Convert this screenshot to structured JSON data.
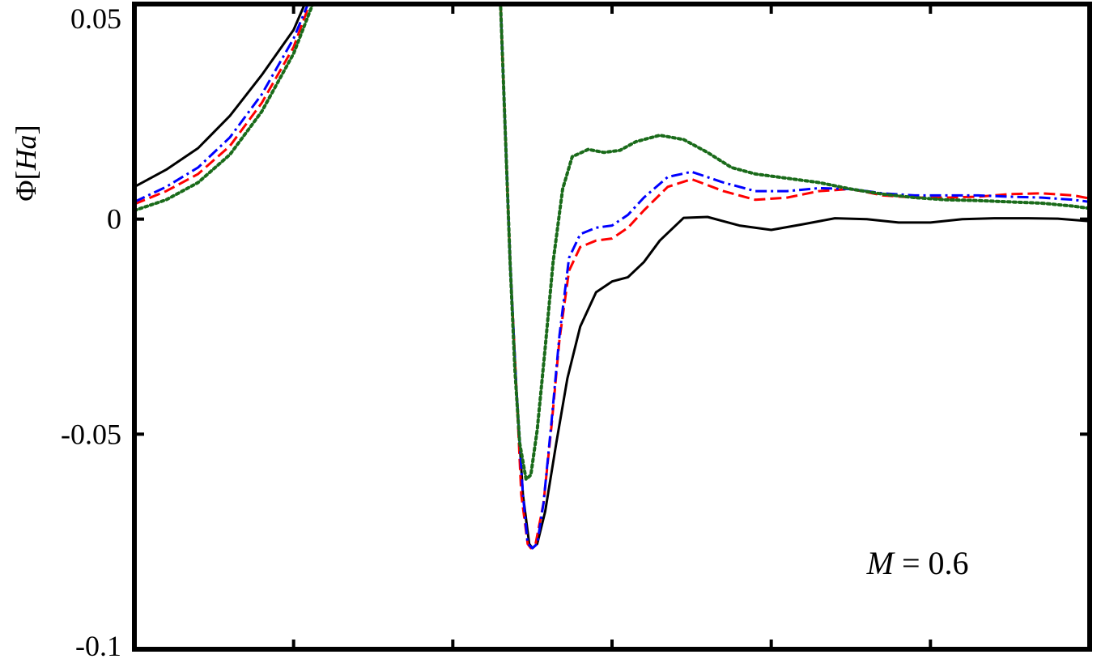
{
  "chart_data": {
    "type": "line",
    "title": "",
    "xlabel": "",
    "ylabel": "Φ[Ha]",
    "ylabel_parts": {
      "symbol": "Φ",
      "open": "[",
      "unit": "Ha",
      "close": "]"
    },
    "xlim": [
      0,
      6
    ],
    "ylim": [
      -0.1,
      0.05
    ],
    "x_ticks": [
      1,
      2,
      3,
      4,
      5
    ],
    "y_ticks": [
      {
        "value": 0.05,
        "label": "0.05"
      },
      {
        "value": 0,
        "label": "0"
      },
      {
        "value": -0.05,
        "label": "-0.05"
      },
      {
        "value": -0.1,
        "label": "-0.1"
      }
    ],
    "grid": false,
    "legend": "none",
    "annotation": {
      "lhs": "M",
      "eq": "=",
      "rhs": "0.6",
      "x": 4.6,
      "y": -0.0825
    },
    "series": [
      {
        "style": "solid",
        "color": "#000000",
        "points": [
          [
            0,
            0.0075
          ],
          [
            0.2,
            0.0115
          ],
          [
            0.4,
            0.0165
          ],
          [
            0.6,
            0.024
          ],
          [
            0.8,
            0.0335
          ],
          [
            1,
            0.044
          ],
          [
            1.07,
            0.05
          ],
          [
            2.3,
            0.05
          ],
          [
            2.33,
            0.02
          ],
          [
            2.36,
            -0.01
          ],
          [
            2.4,
            -0.04
          ],
          [
            2.44,
            -0.064
          ],
          [
            2.48,
            -0.0755
          ],
          [
            2.5,
            -0.0765
          ],
          [
            2.53,
            -0.0755
          ],
          [
            2.58,
            -0.068
          ],
          [
            2.65,
            -0.052
          ],
          [
            2.72,
            -0.037
          ],
          [
            2.8,
            -0.025
          ],
          [
            2.9,
            -0.017
          ],
          [
            3,
            -0.0145
          ],
          [
            3.1,
            -0.0135
          ],
          [
            3.2,
            -0.01
          ],
          [
            3.3,
            -0.005
          ],
          [
            3.45,
            0.0003
          ],
          [
            3.6,
            0.0005
          ],
          [
            3.8,
            -0.0015
          ],
          [
            4,
            -0.0025
          ],
          [
            4.2,
            -0.0012
          ],
          [
            4.4,
            0.0002
          ],
          [
            4.6,
            0
          ],
          [
            4.8,
            -0.0008
          ],
          [
            5,
            -0.0008
          ],
          [
            5.2,
            0
          ],
          [
            5.4,
            0.0002
          ],
          [
            5.6,
            0.0002
          ],
          [
            5.8,
            0.0001
          ],
          [
            6,
            -0.0005
          ]
        ]
      },
      {
        "style": "dashed",
        "color": "#ff0000",
        "points": [
          [
            0,
            0.0035
          ],
          [
            0.2,
            0.0065
          ],
          [
            0.4,
            0.0105
          ],
          [
            0.6,
            0.017
          ],
          [
            0.8,
            0.027
          ],
          [
            1,
            0.04
          ],
          [
            1.1,
            0.05
          ],
          [
            2.3,
            0.05
          ],
          [
            2.33,
            0.02
          ],
          [
            2.36,
            -0.01
          ],
          [
            2.4,
            -0.04
          ],
          [
            2.43,
            -0.064
          ],
          [
            2.47,
            -0.0755
          ],
          [
            2.49,
            -0.0765
          ],
          [
            2.52,
            -0.0755
          ],
          [
            2.57,
            -0.066
          ],
          [
            2.62,
            -0.048
          ],
          [
            2.67,
            -0.028
          ],
          [
            2.73,
            -0.012
          ],
          [
            2.8,
            -0.0065
          ],
          [
            2.9,
            -0.005
          ],
          [
            3,
            -0.0045
          ],
          [
            3.1,
            -0.002
          ],
          [
            3.2,
            0.002
          ],
          [
            3.35,
            0.0075
          ],
          [
            3.5,
            0.0093
          ],
          [
            3.7,
            0.0065
          ],
          [
            3.9,
            0.0045
          ],
          [
            4.1,
            0.005
          ],
          [
            4.3,
            0.0065
          ],
          [
            4.5,
            0.007
          ],
          [
            4.7,
            0.0055
          ],
          [
            4.9,
            0.005
          ],
          [
            5.1,
            0.005
          ],
          [
            5.3,
            0.0052
          ],
          [
            5.5,
            0.0058
          ],
          [
            5.7,
            0.006
          ],
          [
            5.9,
            0.0055
          ],
          [
            6,
            0.0048
          ]
        ]
      },
      {
        "style": "dash-dot",
        "color": "#0000ff",
        "points": [
          [
            0,
            0.004
          ],
          [
            0.2,
            0.0075
          ],
          [
            0.4,
            0.012
          ],
          [
            0.6,
            0.019
          ],
          [
            0.8,
            0.029
          ],
          [
            1,
            0.042
          ],
          [
            1.09,
            0.05
          ],
          [
            2.3,
            0.05
          ],
          [
            2.33,
            0.02
          ],
          [
            2.36,
            -0.01
          ],
          [
            2.4,
            -0.04
          ],
          [
            2.44,
            -0.064
          ],
          [
            2.47,
            -0.0755
          ],
          [
            2.5,
            -0.0765
          ],
          [
            2.53,
            -0.0755
          ],
          [
            2.57,
            -0.066
          ],
          [
            2.62,
            -0.047
          ],
          [
            2.67,
            -0.027
          ],
          [
            2.73,
            -0.009
          ],
          [
            2.8,
            -0.0035
          ],
          [
            2.9,
            -0.002
          ],
          [
            3,
            -0.0015
          ],
          [
            3.1,
            0.001
          ],
          [
            3.2,
            0.005
          ],
          [
            3.35,
            0.0098
          ],
          [
            3.5,
            0.011
          ],
          [
            3.7,
            0.0085
          ],
          [
            3.9,
            0.0065
          ],
          [
            4.1,
            0.0065
          ],
          [
            4.3,
            0.0072
          ],
          [
            4.5,
            0.007
          ],
          [
            4.7,
            0.006
          ],
          [
            4.9,
            0.0055
          ],
          [
            5.1,
            0.0055
          ],
          [
            5.3,
            0.0055
          ],
          [
            5.5,
            0.0052
          ],
          [
            5.7,
            0.005
          ],
          [
            5.9,
            0.0045
          ],
          [
            6,
            0.004
          ]
        ]
      },
      {
        "style": "dotted",
        "color": "#1a6b1a",
        "points": [
          [
            0,
            0.002
          ],
          [
            0.2,
            0.0045
          ],
          [
            0.4,
            0.0085
          ],
          [
            0.6,
            0.015
          ],
          [
            0.8,
            0.025
          ],
          [
            1,
            0.0385
          ],
          [
            1.12,
            0.05
          ],
          [
            2.3,
            0.05
          ],
          [
            2.33,
            0.02
          ],
          [
            2.36,
            -0.01
          ],
          [
            2.39,
            -0.035
          ],
          [
            2.42,
            -0.052
          ],
          [
            2.46,
            -0.0605
          ],
          [
            2.49,
            -0.0595
          ],
          [
            2.53,
            -0.049
          ],
          [
            2.58,
            -0.03
          ],
          [
            2.63,
            -0.01
          ],
          [
            2.69,
            0.007
          ],
          [
            2.75,
            0.0145
          ],
          [
            2.85,
            0.0162
          ],
          [
            2.95,
            0.0155
          ],
          [
            3.05,
            0.016
          ],
          [
            3.15,
            0.018
          ],
          [
            3.3,
            0.0195
          ],
          [
            3.45,
            0.0185
          ],
          [
            3.6,
            0.0155
          ],
          [
            3.75,
            0.012
          ],
          [
            3.9,
            0.0105
          ],
          [
            4.1,
            0.0095
          ],
          [
            4.3,
            0.0085
          ],
          [
            4.5,
            0.007
          ],
          [
            4.7,
            0.0058
          ],
          [
            4.9,
            0.005
          ],
          [
            5.1,
            0.0045
          ],
          [
            5.3,
            0.0043
          ],
          [
            5.5,
            0.004
          ],
          [
            5.7,
            0.0037
          ],
          [
            5.9,
            0.003
          ],
          [
            6,
            0.0025
          ]
        ]
      }
    ]
  }
}
